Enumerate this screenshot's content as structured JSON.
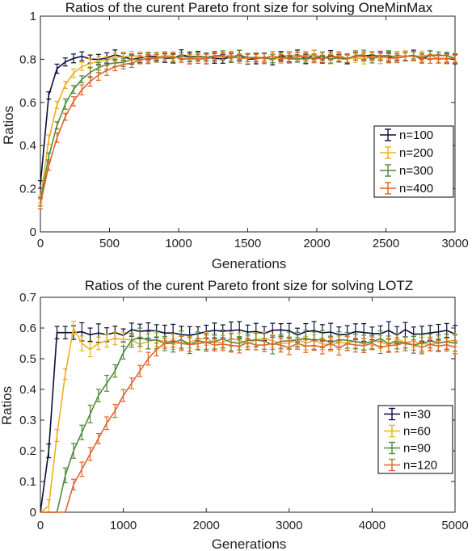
{
  "chart_data": [
    {
      "type": "line",
      "title": "Ratios of the curent Pareto front size for solving OneMinMax",
      "xlabel": "Generations",
      "ylabel": "Ratios",
      "xlim": [
        0,
        3000
      ],
      "ylim": [
        0,
        1
      ],
      "xticks": [
        "0",
        "500",
        "1000",
        "1500",
        "2000",
        "2500",
        "3000"
      ],
      "yticks": [
        "0",
        "0.2",
        "0.4",
        "0.6",
        "0.8",
        "1"
      ],
      "legend_position": "right",
      "error_bars": true,
      "series": [
        {
          "name": "n=100",
          "color": "#0b0e3a",
          "tau": 50,
          "start": 0.22,
          "plateau": 0.81,
          "err": 0.02,
          "step": 60,
          "jitter": 0.012
        },
        {
          "name": "n=200",
          "color": "#edb120",
          "tau": 110,
          "start": 0.15,
          "plateau": 0.81,
          "err": 0.02,
          "step": 60,
          "jitter": 0.01
        },
        {
          "name": "n=300",
          "color": "#4f8a3b",
          "tau": 160,
          "start": 0.14,
          "plateau": 0.81,
          "err": 0.02,
          "step": 60,
          "jitter": 0.01
        },
        {
          "name": "n=400",
          "color": "#e0632b",
          "tau": 200,
          "start": 0.13,
          "plateau": 0.81,
          "err": 0.02,
          "step": 60,
          "jitter": 0.008
        }
      ]
    },
    {
      "type": "line",
      "title": "Ratios of the curent Pareto front size for solving LOTZ",
      "xlabel": "Generations",
      "ylabel": "Ratios",
      "xlim": [
        0,
        5000
      ],
      "ylim": [
        0,
        0.7
      ],
      "xticks": [
        "0",
        "1000",
        "2000",
        "3000",
        "4000",
        "5000"
      ],
      "yticks": [
        "0",
        "0.1",
        "0.2",
        "0.3",
        "0.4",
        "0.5",
        "0.6",
        "0.7"
      ],
      "legend_position": "right",
      "error_bars": true,
      "series": [
        {
          "name": "n=30",
          "color": "#0b0e3a",
          "points": [
            [
              0,
              0
            ],
            [
              100,
              0.2
            ],
            [
              150,
              0.585
            ],
            [
              200,
              0.585
            ],
            [
              300,
              0.585
            ],
            [
              400,
              0.585
            ]
          ],
          "plateau": 0.585,
          "err": 0.025,
          "step": 100,
          "jitter": 0.01
        },
        {
          "name": "n=60",
          "color": "#edb120",
          "points": [
            [
              0,
              0
            ],
            [
              100,
              0.02
            ],
            [
              200,
              0.25
            ],
            [
              300,
              0.45
            ],
            [
              350,
              0.55
            ],
            [
              400,
              0.6
            ],
            [
              450,
              0.58
            ],
            [
              500,
              0.55
            ],
            [
              600,
              0.53
            ],
            [
              700,
              0.55
            ]
          ],
          "plateau": 0.555,
          "err": 0.02,
          "step": 100,
          "jitter": 0.012
        },
        {
          "name": "n=90",
          "color": "#4f8a3b",
          "points": [
            [
              0,
              0
            ],
            [
              200,
              0
            ],
            [
              300,
              0.12
            ],
            [
              400,
              0.2
            ],
            [
              500,
              0.26
            ],
            [
              600,
              0.32
            ],
            [
              700,
              0.38
            ],
            [
              800,
              0.42
            ],
            [
              900,
              0.46
            ],
            [
              1000,
              0.52
            ],
            [
              1100,
              0.56
            ],
            [
              1200,
              0.57
            ]
          ],
          "plateau": 0.555,
          "err": 0.025,
          "step": 100,
          "jitter": 0.012
        },
        {
          "name": "n=120",
          "color": "#e0632b",
          "points": [
            [
              0,
              0
            ],
            [
              300,
              0
            ],
            [
              400,
              0.09
            ],
            [
              500,
              0.14
            ],
            [
              600,
              0.19
            ],
            [
              700,
              0.24
            ],
            [
              800,
              0.29
            ],
            [
              900,
              0.33
            ],
            [
              1000,
              0.38
            ],
            [
              1100,
              0.42
            ],
            [
              1200,
              0.46
            ],
            [
              1300,
              0.5
            ],
            [
              1400,
              0.53
            ],
            [
              1500,
              0.55
            ],
            [
              1600,
              0.56
            ]
          ],
          "plateau": 0.545,
          "err": 0.02,
          "step": 100,
          "jitter": 0.01
        }
      ]
    }
  ]
}
